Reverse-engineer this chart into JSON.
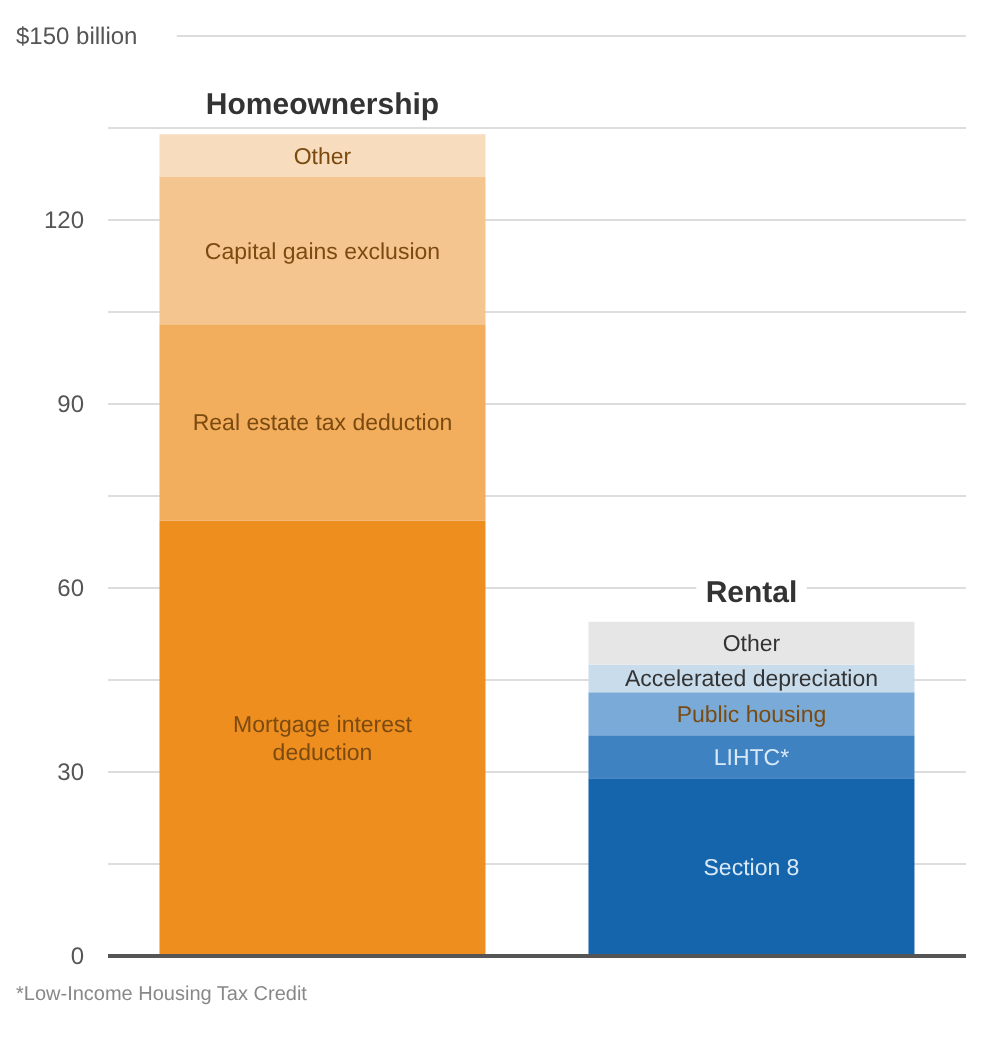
{
  "chart_data": {
    "type": "bar",
    "stacked": true,
    "categories": [
      "Homeownership",
      "Rental"
    ],
    "series": [
      {
        "name": "Mortgage interest deduction",
        "color": "#ee8e1f",
        "values": [
          71,
          null
        ]
      },
      {
        "name": "Real estate tax deduction",
        "color": "#f2ae5c",
        "values": [
          32,
          null
        ]
      },
      {
        "name": "Capital gains exclusion",
        "color": "#f5c58f",
        "values": [
          24,
          null
        ]
      },
      {
        "name": "Other",
        "color": "#f7dcbd",
        "values": [
          7,
          null
        ]
      },
      {
        "name": "Section 8",
        "color": "#1565ac",
        "values": [
          null,
          29
        ]
      },
      {
        "name": "LIHTC*",
        "color": "#3f82c1",
        "values": [
          null,
          7
        ]
      },
      {
        "name": "Public housing",
        "color": "#7aabd8",
        "values": [
          null,
          7
        ]
      },
      {
        "name": "Accelerated depreciation",
        "color": "#c9dcec",
        "values": [
          null,
          4.5
        ]
      },
      {
        "name": "Other",
        "color": "#e6e6e6",
        "values": [
          null,
          7
        ]
      }
    ],
    "ylim": [
      0,
      150
    ],
    "yticks": [
      0,
      {
        "value": 15,
        "label": null
      },
      30,
      {
        "value": 45,
        "label": null
      },
      60,
      {
        "value": 75,
        "label": null
      },
      90,
      {
        "value": 105,
        "label": null
      },
      120,
      {
        "value": 135,
        "label": null
      },
      {
        "value": 150,
        "label": "$150 billion"
      }
    ],
    "grid": "y",
    "annotations": [
      "*Low-Income Housing Tax Credit"
    ]
  }
}
